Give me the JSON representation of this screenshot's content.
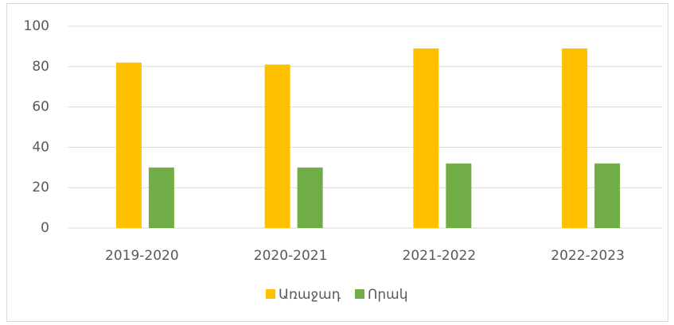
{
  "chart_data": {
    "type": "bar",
    "categories": [
      "2019-2020",
      "2020-2021",
      "2021-2022",
      "2022-2023"
    ],
    "series": [
      {
        "name": "Առաջադ",
        "color": "#ffc000",
        "values": [
          82,
          81,
          89,
          89
        ]
      },
      {
        "name": "Որակ",
        "color": "#70ad47",
        "values": [
          30,
          30,
          32,
          32
        ]
      }
    ],
    "ylim": [
      0,
      100
    ],
    "yticks": [
      0,
      20,
      40,
      60,
      80,
      100
    ],
    "grid": true,
    "legend": "bottom"
  }
}
